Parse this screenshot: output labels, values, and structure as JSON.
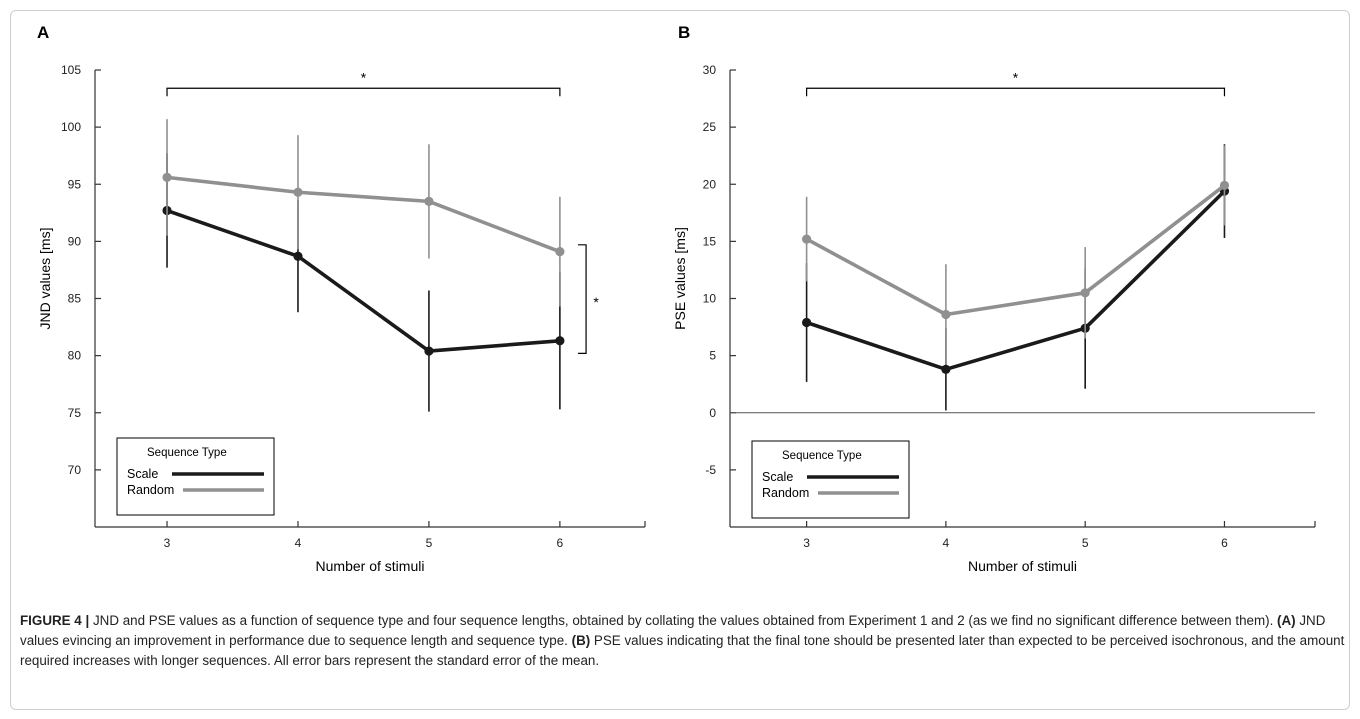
{
  "colors": {
    "scale": "#1a1a1a",
    "random": "#8f9091",
    "axis": "#333333"
  },
  "chart_data": [
    {
      "type": "line",
      "panel": "A",
      "xlabel": "Number of stimuli",
      "ylabel": "JND values [ms]",
      "x": [
        3,
        4,
        5,
        6
      ],
      "xlim": [
        2.45,
        6.65
      ],
      "ylim": [
        65,
        105
      ],
      "yticks": [
        70,
        75,
        80,
        85,
        90,
        95,
        100,
        105
      ],
      "legend_title": "Sequence Type",
      "legend_position": "bottom-left",
      "series": [
        {
          "name": "Scale",
          "values": [
            92.7,
            88.7,
            80.4,
            81.3
          ],
          "errors": [
            5.0,
            4.9,
            5.3,
            6.0
          ]
        },
        {
          "name": "Random",
          "values": [
            95.6,
            94.3,
            93.5,
            89.1
          ],
          "errors": [
            5.1,
            5.0,
            5.0,
            4.8
          ]
        }
      ],
      "annotations": [
        {
          "type": "bracket-top",
          "from": 3,
          "to": 6,
          "y": 103.4,
          "label": "*"
        },
        {
          "type": "bracket-right",
          "x": 6.2,
          "from": 80.2,
          "to": 89.7,
          "label": "*"
        }
      ]
    },
    {
      "type": "line",
      "panel": "B",
      "xlabel": "Number of stimuli",
      "ylabel": "PSE values [ms]",
      "x": [
        3,
        4,
        5,
        6
      ],
      "xlim": [
        2.45,
        6.65
      ],
      "ylim": [
        -10,
        30
      ],
      "yticks": [
        -5,
        0,
        5,
        10,
        15,
        20,
        25,
        30
      ],
      "zero_line": true,
      "legend_title": "Sequence Type",
      "legend_position": "bottom-left",
      "series": [
        {
          "name": "Scale",
          "values": [
            7.9,
            3.8,
            7.4,
            19.4
          ],
          "errors": [
            5.2,
            3.6,
            5.3,
            4.1
          ]
        },
        {
          "name": "Random",
          "values": [
            15.2,
            8.6,
            10.5,
            19.9
          ],
          "errors": [
            3.7,
            4.4,
            4.0,
            3.5
          ]
        }
      ],
      "annotations": [
        {
          "type": "bracket-top",
          "from": 3,
          "to": 6,
          "y": 28.4,
          "label": "*"
        }
      ]
    }
  ],
  "caption": {
    "label": "FIGURE 4 |",
    "text": " JND and PSE values as a function of sequence type and four sequence lengths, obtained by collating the values obtained from Experiment 1 and 2 (as we find no significant difference between them). ",
    "part_a_label": "(A)",
    "part_a_text": " JND values evincing an improvement in performance due to sequence length and sequence type. ",
    "part_b_label": "(B)",
    "part_b_text": " PSE values indicating that the final tone should be presented later than expected to be perceived isochronous, and the amount required increases with longer sequences. All error bars represent the standard error of the mean."
  }
}
